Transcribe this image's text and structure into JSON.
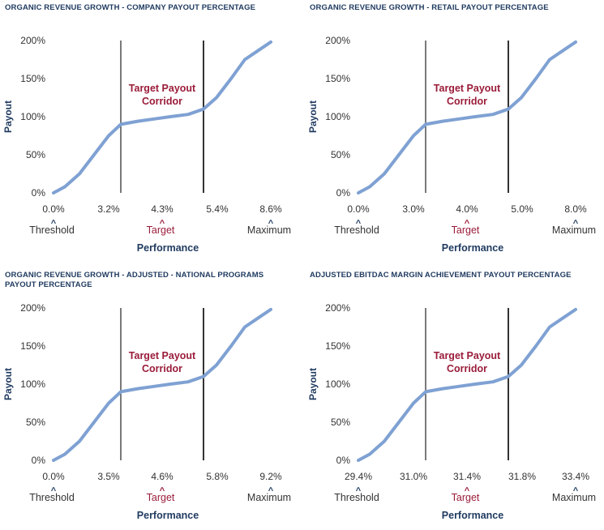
{
  "chart_data": [
    {
      "type": "line",
      "title": "ORGANIC REVENUE GROWTH - COMPANY PAYOUT PERCENTAGE",
      "ylabel": "Payout",
      "xlabel": "Performance",
      "yticks": [
        "0%",
        "50%",
        "100%",
        "150%",
        "200%"
      ],
      "ylim": [
        0,
        200
      ],
      "x_tick_labels": [
        "0.0%",
        "3.2%",
        "4.3%",
        "5.4%",
        "8.6%"
      ],
      "markers": {
        "threshold": "Threshold",
        "target": "Target",
        "maximum": "Maximum"
      },
      "annotation": [
        "Target Payout",
        "Corridor"
      ],
      "series": [
        {
          "values": [
            0,
            8,
            25,
            50,
            75,
            90,
            94,
            97,
            100,
            103,
            110,
            125,
            150,
            175,
            188,
            198
          ]
        }
      ]
    },
    {
      "type": "line",
      "title": "ORGANIC REVENUE GROWTH - RETAIL PAYOUT PERCENTAGE",
      "ylabel": "Payout",
      "xlabel": "Performance",
      "yticks": [
        "0%",
        "50%",
        "100%",
        "150%",
        "200%"
      ],
      "ylim": [
        0,
        200
      ],
      "x_tick_labels": [
        "0.0%",
        "3.0%",
        "4.0%",
        "5.0%",
        "8.0%"
      ],
      "markers": {
        "threshold": "Threshold",
        "target": "Target",
        "maximum": "Maximum"
      },
      "annotation": [
        "Target Payout",
        "Corridor"
      ],
      "series": [
        {
          "values": [
            0,
            8,
            25,
            50,
            75,
            90,
            94,
            97,
            100,
            103,
            110,
            125,
            150,
            175,
            188,
            198
          ]
        }
      ]
    },
    {
      "type": "line",
      "title": "ORGANIC REVENUE GROWTH - ADJUSTED - NATIONAL PROGRAMS PAYOUT PERCENTAGE",
      "ylabel": "Payout",
      "xlabel": "Performance",
      "yticks": [
        "0%",
        "50%",
        "100%",
        "150%",
        "200%"
      ],
      "ylim": [
        0,
        200
      ],
      "x_tick_labels": [
        "0.0%",
        "3.5%",
        "4.6%",
        "5.8%",
        "9.2%"
      ],
      "markers": {
        "threshold": "Threshold",
        "target": "Target",
        "maximum": "Maximum"
      },
      "annotation": [
        "Target Payout",
        "Corridor"
      ],
      "series": [
        {
          "values": [
            0,
            8,
            25,
            50,
            75,
            90,
            94,
            97,
            100,
            103,
            110,
            125,
            150,
            175,
            188,
            198
          ]
        }
      ]
    },
    {
      "type": "line",
      "title": "ADJUSTED EBITDAC MARGIN ACHIEVEMENT PAYOUT PERCENTAGE",
      "ylabel": "Payout",
      "xlabel": "Performance",
      "yticks": [
        "0%",
        "50%",
        "100%",
        "150%",
        "200%"
      ],
      "ylim": [
        0,
        200
      ],
      "x_tick_labels": [
        "29.4%",
        "31.0%",
        "31.4%",
        "31.8%",
        "33.4%"
      ],
      "markers": {
        "threshold": "Threshold",
        "target": "Target",
        "maximum": "Maximum"
      },
      "annotation": [
        "Target Payout",
        "Corridor"
      ],
      "series": [
        {
          "values": [
            0,
            8,
            25,
            50,
            75,
            90,
            94,
            97,
            100,
            103,
            110,
            125,
            150,
            175,
            188,
            198
          ]
        }
      ]
    }
  ]
}
